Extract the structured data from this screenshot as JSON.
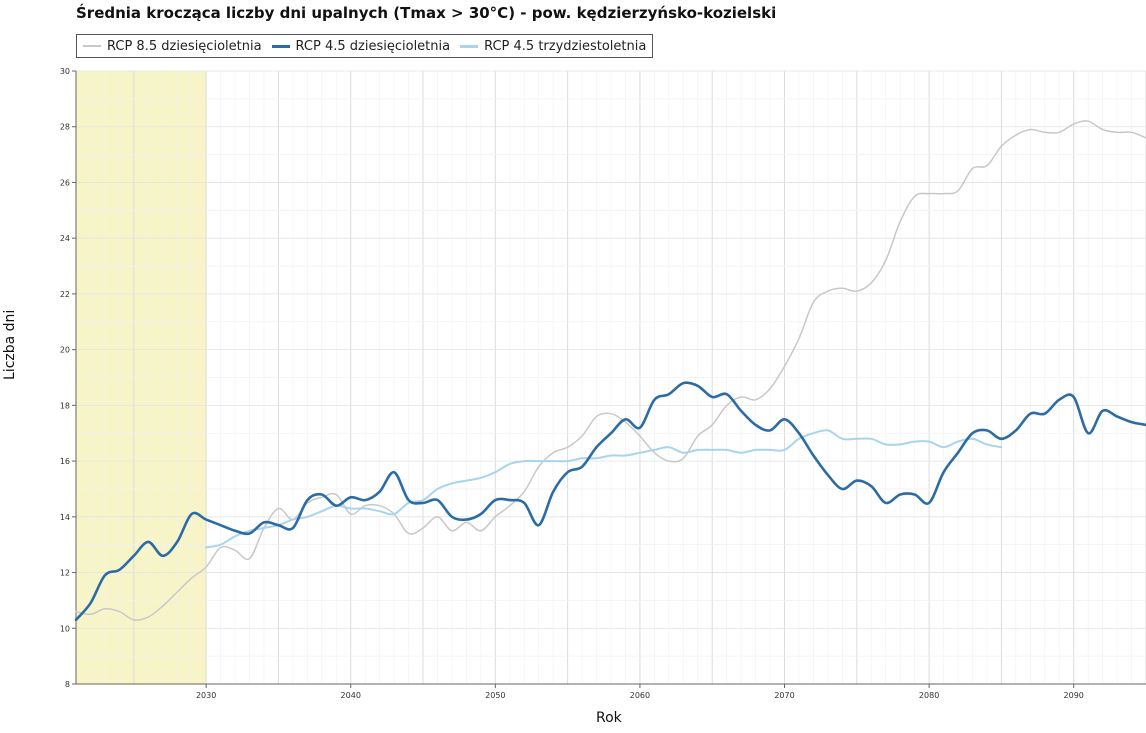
{
  "chart_data": {
    "type": "line",
    "title": "Średnia krocząca liczby dni upalnych (Tmax > 30°C) - pow. kędzierzyńsko-kozielski",
    "xlabel": "Rok",
    "ylabel": "Liczba dni",
    "xlim": [
      2021,
      2095
    ],
    "ylim": [
      8,
      30
    ],
    "xticks": [
      2030,
      2040,
      2050,
      2060,
      2070,
      2080,
      2090
    ],
    "yticks": [
      8,
      10,
      12,
      14,
      16,
      18,
      20,
      22,
      24,
      26,
      28,
      30
    ],
    "grid": true,
    "highlight_band": {
      "from": 2021,
      "to": 2030,
      "color": "#f7f5c8"
    },
    "legend_position": "top-left",
    "series": [
      {
        "name": "RCP 8.5 dziesięcioletnia",
        "color": "#c8c8c8",
        "width": 1.5,
        "x": [
          2021,
          2022,
          2023,
          2024,
          2025,
          2026,
          2027,
          2028,
          2029,
          2030,
          2031,
          2032,
          2033,
          2034,
          2035,
          2036,
          2037,
          2038,
          2039,
          2040,
          2041,
          2042,
          2043,
          2044,
          2045,
          2046,
          2047,
          2048,
          2049,
          2050,
          2051,
          2052,
          2053,
          2054,
          2055,
          2056,
          2057,
          2058,
          2059,
          2060,
          2061,
          2062,
          2063,
          2064,
          2065,
          2066,
          2067,
          2068,
          2069,
          2070,
          2071,
          2072,
          2073,
          2074,
          2075,
          2076,
          2077,
          2078,
          2079,
          2080,
          2081,
          2082,
          2083,
          2084,
          2085,
          2086,
          2087,
          2088,
          2089,
          2090,
          2091,
          2092,
          2093,
          2094,
          2095
        ],
        "y": [
          10.6,
          10.5,
          10.7,
          10.6,
          10.3,
          10.4,
          10.8,
          11.3,
          11.8,
          12.2,
          12.9,
          12.8,
          12.5,
          13.6,
          14.3,
          13.9,
          14.5,
          14.7,
          14.8,
          14.1,
          14.4,
          14.4,
          14.1,
          13.4,
          13.6,
          14.0,
          13.5,
          13.8,
          13.5,
          14.0,
          14.4,
          14.9,
          15.8,
          16.3,
          16.5,
          16.9,
          17.6,
          17.7,
          17.4,
          16.9,
          16.3,
          16.0,
          16.1,
          16.9,
          17.3,
          18.0,
          18.3,
          18.2,
          18.6,
          19.4,
          20.4,
          21.7,
          22.1,
          22.2,
          22.1,
          22.4,
          23.2,
          24.6,
          25.5,
          25.6,
          25.6,
          25.7,
          26.5,
          26.6,
          27.3,
          27.7,
          27.9,
          27.8,
          27.8,
          28.1,
          28.2,
          27.9,
          27.8,
          27.8,
          27.6
        ]
      },
      {
        "name": "RCP 4.5 dziesięcioletnia",
        "color": "#2c6ca6",
        "width": 2.6,
        "x": [
          2021,
          2022,
          2023,
          2024,
          2025,
          2026,
          2027,
          2028,
          2029,
          2030,
          2031,
          2032,
          2033,
          2034,
          2035,
          2036,
          2037,
          2038,
          2039,
          2040,
          2041,
          2042,
          2043,
          2044,
          2045,
          2046,
          2047,
          2048,
          2049,
          2050,
          2051,
          2052,
          2053,
          2054,
          2055,
          2056,
          2057,
          2058,
          2059,
          2060,
          2061,
          2062,
          2063,
          2064,
          2065,
          2066,
          2067,
          2068,
          2069,
          2070,
          2071,
          2072,
          2073,
          2074,
          2075,
          2076,
          2077,
          2078,
          2079,
          2080,
          2081,
          2082,
          2083,
          2084,
          2085,
          2086,
          2087,
          2088,
          2089,
          2090,
          2091,
          2092,
          2093,
          2094,
          2095
        ],
        "y": [
          10.3,
          10.9,
          11.9,
          12.1,
          12.6,
          13.1,
          12.6,
          13.1,
          14.1,
          13.9,
          13.7,
          13.5,
          13.4,
          13.8,
          13.7,
          13.6,
          14.6,
          14.8,
          14.4,
          14.7,
          14.6,
          14.9,
          15.6,
          14.6,
          14.5,
          14.6,
          14.0,
          13.9,
          14.1,
          14.6,
          14.6,
          14.5,
          13.7,
          14.9,
          15.6,
          15.8,
          16.5,
          17.0,
          17.5,
          17.2,
          18.2,
          18.4,
          18.8,
          18.7,
          18.3,
          18.4,
          17.8,
          17.3,
          17.1,
          17.5,
          17.0,
          16.2,
          15.5,
          15.0,
          15.3,
          15.1,
          14.5,
          14.8,
          14.8,
          14.5,
          15.6,
          16.3,
          17.0,
          17.1,
          16.8,
          17.1,
          17.7,
          17.7,
          18.2,
          18.3,
          17.0,
          17.8,
          17.6,
          17.4,
          17.3
        ]
      },
      {
        "name": "RCP 4.5 trzydziestoletnia",
        "color": "#a8d4ec",
        "width": 2.0,
        "x": [
          2030,
          2031,
          2032,
          2033,
          2034,
          2035,
          2036,
          2037,
          2038,
          2039,
          2040,
          2041,
          2042,
          2043,
          2044,
          2045,
          2046,
          2047,
          2048,
          2049,
          2050,
          2051,
          2052,
          2053,
          2054,
          2055,
          2056,
          2057,
          2058,
          2059,
          2060,
          2061,
          2062,
          2063,
          2064,
          2065,
          2066,
          2067,
          2068,
          2069,
          2070,
          2071,
          2072,
          2073,
          2074,
          2075,
          2076,
          2077,
          2078,
          2079,
          2080,
          2081,
          2082,
          2083,
          2084,
          2085
        ],
        "y": [
          12.9,
          13.0,
          13.3,
          13.5,
          13.6,
          13.7,
          13.9,
          14.0,
          14.2,
          14.4,
          14.3,
          14.3,
          14.2,
          14.1,
          14.5,
          14.6,
          15.0,
          15.2,
          15.3,
          15.4,
          15.6,
          15.9,
          16.0,
          16.0,
          16.0,
          16.0,
          16.1,
          16.1,
          16.2,
          16.2,
          16.3,
          16.4,
          16.5,
          16.3,
          16.4,
          16.4,
          16.4,
          16.3,
          16.4,
          16.4,
          16.4,
          16.8,
          17.0,
          17.1,
          16.8,
          16.8,
          16.8,
          16.6,
          16.6,
          16.7,
          16.7,
          16.5,
          16.7,
          16.8,
          16.6,
          16.5
        ]
      }
    ]
  }
}
